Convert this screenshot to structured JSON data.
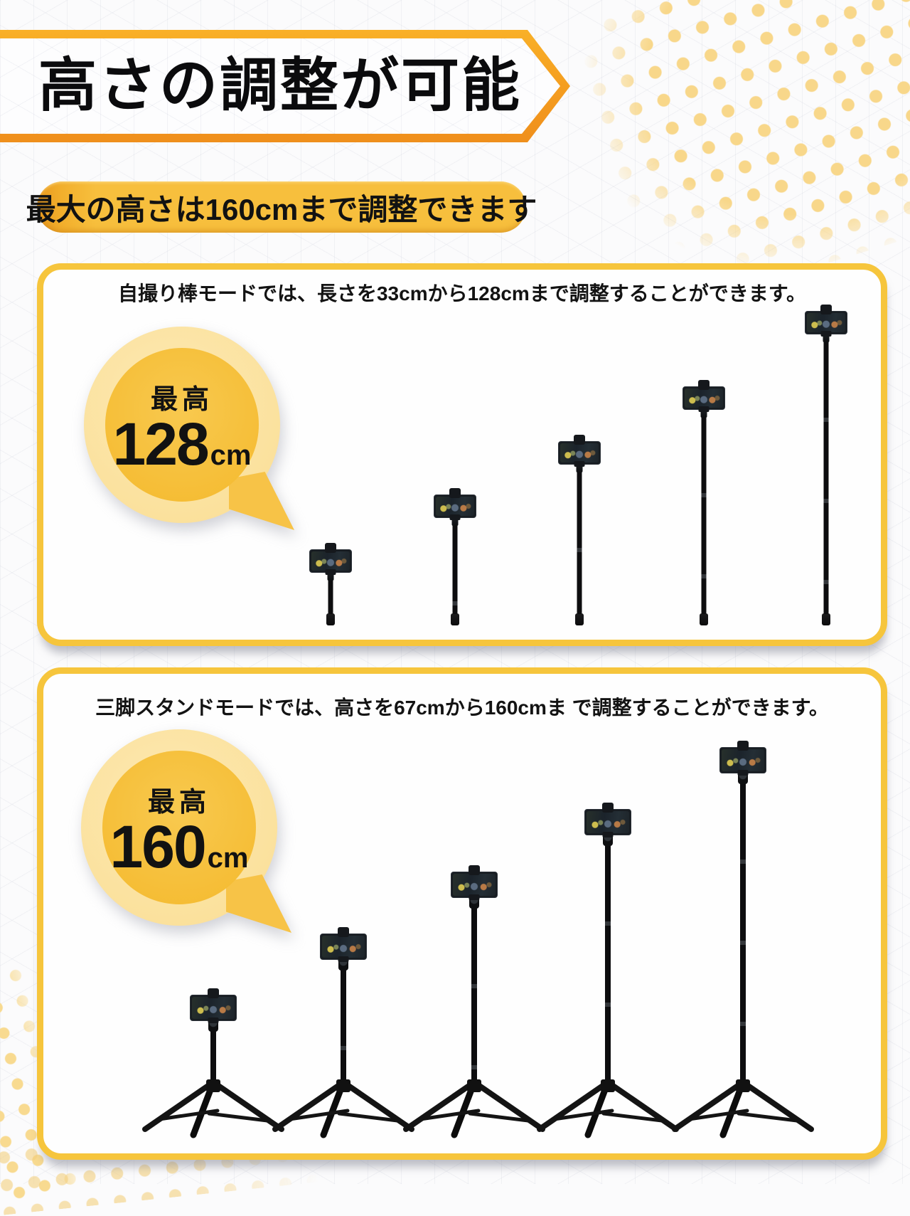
{
  "header": {
    "title": "高さの調整が可能"
  },
  "subheader": {
    "text": "最大の高さは160cmまで調整できます"
  },
  "panels": {
    "selfie": {
      "caption": "自撮り棒モードでは、長さを33cmから128cmまで調整することができます。",
      "bubble": {
        "label": "最高",
        "value": "128",
        "unit": "cm"
      },
      "min_length_cm": 33,
      "max_length_cm": 128,
      "stick_count": 5
    },
    "tripod": {
      "caption": "三脚スタンドモードでは、高さを67cmから160cmま で調整することができます。",
      "bubble": {
        "label": "最高",
        "value": "160",
        "unit": "cm"
      },
      "min_height_cm": 67,
      "max_height_cm": 160,
      "tripod_count": 5
    }
  },
  "colors": {
    "accent_orange": "#F49C1F",
    "accent_yellow": "#F6C53C",
    "pill_yellow": "#F7BF3D",
    "bubble_inner": "#F7C343",
    "bubble_outer": "#FBE09A",
    "dot_yellow": "#F8D78A",
    "text_black": "#111111"
  }
}
